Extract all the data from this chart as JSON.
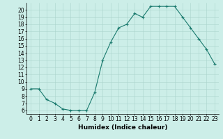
{
  "x": [
    0,
    1,
    2,
    3,
    4,
    5,
    6,
    7,
    8,
    9,
    10,
    11,
    12,
    13,
    14,
    15,
    16,
    17,
    18,
    19,
    20,
    21,
    22,
    23
  ],
  "y": [
    9,
    9,
    7.5,
    7,
    6.2,
    6,
    6,
    6,
    8.5,
    13,
    15.5,
    17.5,
    18,
    19.5,
    19,
    20.5,
    20.5,
    20.5,
    20.5,
    19,
    17.5,
    16,
    14.5,
    12.5
  ],
  "xlabel": "Humidex (Indice chaleur)",
  "xlim": [
    -0.5,
    23.5
  ],
  "ylim": [
    5.5,
    21
  ],
  "yticks": [
    6,
    7,
    8,
    9,
    10,
    11,
    12,
    13,
    14,
    15,
    16,
    17,
    18,
    19,
    20
  ],
  "xticks": [
    0,
    1,
    2,
    3,
    4,
    5,
    6,
    7,
    8,
    9,
    10,
    11,
    12,
    13,
    14,
    15,
    16,
    17,
    18,
    19,
    20,
    21,
    22,
    23
  ],
  "line_color": "#1a7a6e",
  "marker": "+",
  "bg_color": "#cceee8",
  "grid_color": "#aad4cc",
  "xlabel_fontsize": 6.5,
  "tick_fontsize": 5.5,
  "linewidth": 0.8,
  "markersize": 3,
  "markeredgewidth": 0.8
}
